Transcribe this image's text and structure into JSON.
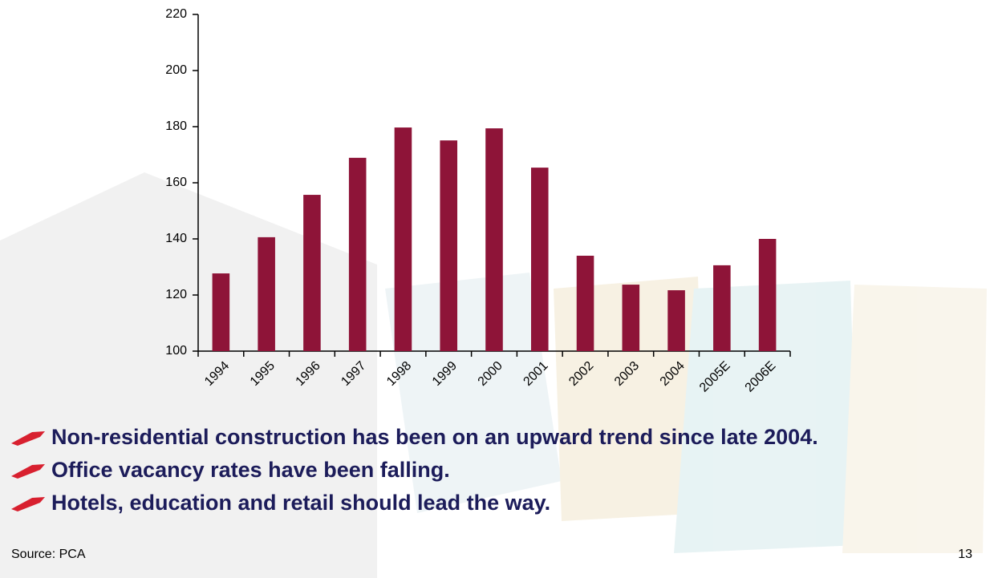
{
  "chart_data": {
    "type": "bar",
    "categories": [
      "1994",
      "1995",
      "1996",
      "1997",
      "1998",
      "1999",
      "2000",
      "2001",
      "2002",
      "2003",
      "2004",
      "2005E",
      "2006E"
    ],
    "values": [
      127.7,
      140.6,
      155.7,
      168.9,
      179.7,
      175.1,
      179.4,
      165.4,
      134,
      123.7,
      121.7,
      130.6,
      140
    ],
    "color": "#8e1438",
    "ylim": [
      100,
      220
    ],
    "yticks": [
      100,
      120,
      140,
      160,
      180,
      200,
      220
    ],
    "grid": false
  },
  "bullets": [
    "Non-residential construction has been on an upward trend since late 2004.",
    "Office vacancy rates have been falling.",
    "Hotels, education and retail should lead the way."
  ],
  "source": "Source:  PCA",
  "page_number": "13"
}
